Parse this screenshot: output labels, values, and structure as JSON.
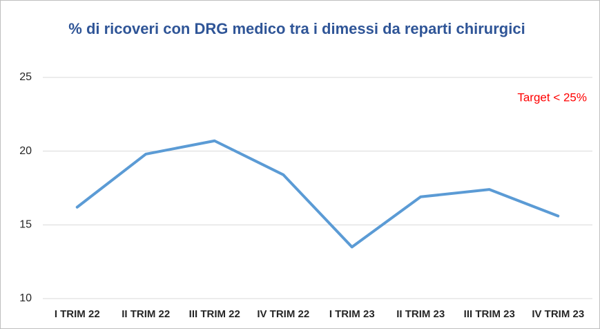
{
  "chart_data": {
    "type": "line",
    "title": "% di ricoveri con DRG medico tra i dimessi da reparti chirurgici",
    "annotation": "Target < 25%",
    "categories": [
      "I TRIM 22",
      "II TRIM 22",
      "III TRIM 22",
      "IV TRIM 22",
      "I TRIM 23",
      "II TRIM 23",
      "III TRIM 23",
      "IV TRIM 23"
    ],
    "values": [
      16.2,
      19.8,
      20.7,
      18.4,
      13.5,
      16.9,
      17.4,
      15.6
    ],
    "color": "#5b9bd5",
    "ylim": [
      10,
      25
    ],
    "yticks": [
      10,
      15,
      20,
      25
    ],
    "grid": true
  }
}
